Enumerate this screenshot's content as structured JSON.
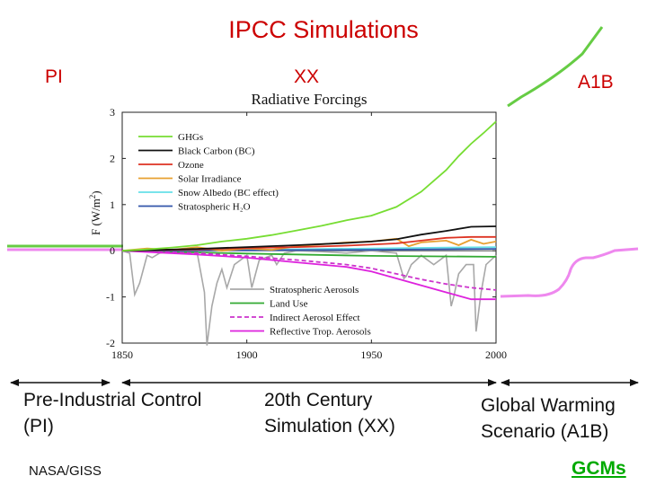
{
  "slide": {
    "title": "IPCC  Simulations",
    "eras": {
      "pi": "PI",
      "xx": "XX",
      "a1b": "A1B"
    },
    "captions": {
      "pi": "Pre-Industrial Control (PI)",
      "xx": "20th Century Simulation (XX)",
      "a1b": "Global Warming Scenario (A1B)"
    },
    "credit": "NASA/GISS",
    "link": "GCMs"
  },
  "colors": {
    "ghg": "#77dd33",
    "bc": "#111111",
    "ozone": "#dd3322",
    "solar": "#e8a030",
    "snow": "#66e0e8",
    "strat_h2o": "#3355aa",
    "strat_aer": "#a8a8a8",
    "land": "#33aa33",
    "indirect": "#cc33cc",
    "reflective": "#dd22dd",
    "pi_green": "#66cc44",
    "pi_pink": "#ee88ee",
    "arrow": "#111111"
  },
  "chart_data": {
    "type": "line",
    "title": "Radiative Forcings",
    "xlabel": "",
    "ylabel": "F (W/m²)",
    "ylabel_main": "F (W/m",
    "ylabel_sup": "2",
    "ylabel_end": ")",
    "xlim": [
      1850,
      2000
    ],
    "ylim": [
      -2,
      3
    ],
    "xticks": [
      1850,
      1900,
      1950,
      2000
    ],
    "yticks": [
      -2,
      -1,
      0,
      1,
      2,
      3
    ],
    "grid": false,
    "legend_top": "top-left",
    "legend_bottom": "bottom-center",
    "series": [
      {
        "key": "ghg",
        "name": "GHGs",
        "legend": "top",
        "style": "solid",
        "x": [
          1850,
          1860,
          1870,
          1880,
          1890,
          1900,
          1910,
          1920,
          1930,
          1940,
          1950,
          1960,
          1970,
          1980,
          1985,
          1990,
          1995,
          2000
        ],
        "y": [
          0.0,
          0.03,
          0.07,
          0.12,
          0.2,
          0.26,
          0.34,
          0.44,
          0.54,
          0.66,
          0.76,
          0.95,
          1.28,
          1.75,
          2.05,
          2.32,
          2.55,
          2.8
        ]
      },
      {
        "key": "bc",
        "name": "Black Carbon (BC)",
        "legend": "top",
        "style": "solid",
        "x": [
          1850,
          1880,
          1900,
          1920,
          1940,
          1950,
          1960,
          1970,
          1980,
          1990,
          2000
        ],
        "y": [
          0.0,
          0.04,
          0.08,
          0.12,
          0.17,
          0.2,
          0.25,
          0.35,
          0.43,
          0.52,
          0.53
        ]
      },
      {
        "key": "ozone",
        "name": "Ozone",
        "legend": "top",
        "style": "solid",
        "x": [
          1850,
          1880,
          1900,
          1920,
          1940,
          1960,
          1970,
          1980,
          1990,
          2000
        ],
        "y": [
          0.0,
          0.03,
          0.06,
          0.08,
          0.11,
          0.16,
          0.22,
          0.28,
          0.3,
          0.3
        ]
      },
      {
        "key": "solar",
        "name": "Solar Irradiance",
        "legend": "top",
        "style": "solid",
        "x": [
          1850,
          1860,
          1870,
          1880,
          1890,
          1900,
          1910,
          1920,
          1930,
          1940,
          1950,
          1960,
          1965,
          1970,
          1980,
          1985,
          1990,
          1995,
          2000
        ],
        "y": [
          0.0,
          0.05,
          0.02,
          0.08,
          0.0,
          0.05,
          0.02,
          0.1,
          0.14,
          0.18,
          0.2,
          0.26,
          0.1,
          0.18,
          0.22,
          0.12,
          0.24,
          0.15,
          0.2
        ]
      },
      {
        "key": "snow",
        "name": "Snow Albedo (BC effect)",
        "legend": "top",
        "style": "solid",
        "x": [
          1850,
          1900,
          1950,
          2000
        ],
        "y": [
          0.0,
          0.02,
          0.05,
          0.08
        ]
      },
      {
        "key": "strat_h2o",
        "name": "Stratospheric H₂O",
        "legend": "top",
        "style": "solid",
        "x": [
          1850,
          1900,
          1950,
          2000
        ],
        "y": [
          0.0,
          0.01,
          0.02,
          0.04
        ]
      },
      {
        "key": "strat_aer",
        "name": "Stratospheric Aerosols",
        "legend": "bottom",
        "style": "solid",
        "x": [
          1850,
          1853,
          1855,
          1857,
          1860,
          1862,
          1865,
          1870,
          1875,
          1880,
          1883,
          1884,
          1886,
          1888,
          1890,
          1892,
          1895,
          1900,
          1902,
          1903,
          1905,
          1910,
          1912,
          1915,
          1920,
          1930,
          1940,
          1950,
          1960,
          1963,
          1964,
          1966,
          1968,
          1970,
          1975,
          1980,
          1982,
          1983,
          1985,
          1988,
          1991,
          1992,
          1994,
          1996,
          2000
        ],
        "y": [
          0.0,
          -0.05,
          -0.95,
          -0.7,
          -0.1,
          -0.15,
          -0.05,
          0.0,
          -0.05,
          -0.02,
          -0.9,
          -2.05,
          -1.2,
          -0.7,
          -0.4,
          -0.8,
          -0.3,
          -0.1,
          -0.8,
          -0.6,
          -0.2,
          -0.1,
          -0.3,
          -0.05,
          0.0,
          -0.02,
          -0.05,
          0.0,
          -0.05,
          -0.6,
          -0.55,
          -0.3,
          -0.2,
          -0.1,
          -0.3,
          -0.1,
          -1.2,
          -1.0,
          -0.5,
          -0.3,
          -0.3,
          -1.75,
          -0.9,
          -0.3,
          -0.1
        ]
      },
      {
        "key": "land",
        "name": "Land Use",
        "legend": "bottom",
        "style": "solid",
        "x": [
          1850,
          1900,
          1950,
          2000
        ],
        "y": [
          0.0,
          -0.06,
          -0.11,
          -0.13
        ]
      },
      {
        "key": "indirect",
        "name": "Indirect Aerosol Effect",
        "legend": "bottom",
        "style": "dashed",
        "x": [
          1850,
          1880,
          1900,
          1920,
          1940,
          1950,
          1960,
          1970,
          1980,
          1990,
          2000
        ],
        "y": [
          0.0,
          -0.05,
          -0.12,
          -0.2,
          -0.3,
          -0.38,
          -0.5,
          -0.62,
          -0.72,
          -0.8,
          -0.85
        ]
      },
      {
        "key": "reflective",
        "name": "Reflective Trop. Aerosols",
        "legend": "bottom",
        "style": "solid",
        "x": [
          1850,
          1880,
          1900,
          1920,
          1940,
          1950,
          1960,
          1970,
          1980,
          1990,
          2000
        ],
        "y": [
          0.0,
          -0.08,
          -0.15,
          -0.25,
          -0.35,
          -0.45,
          -0.6,
          -0.75,
          -0.9,
          -1.05,
          -1.05
        ]
      }
    ]
  }
}
